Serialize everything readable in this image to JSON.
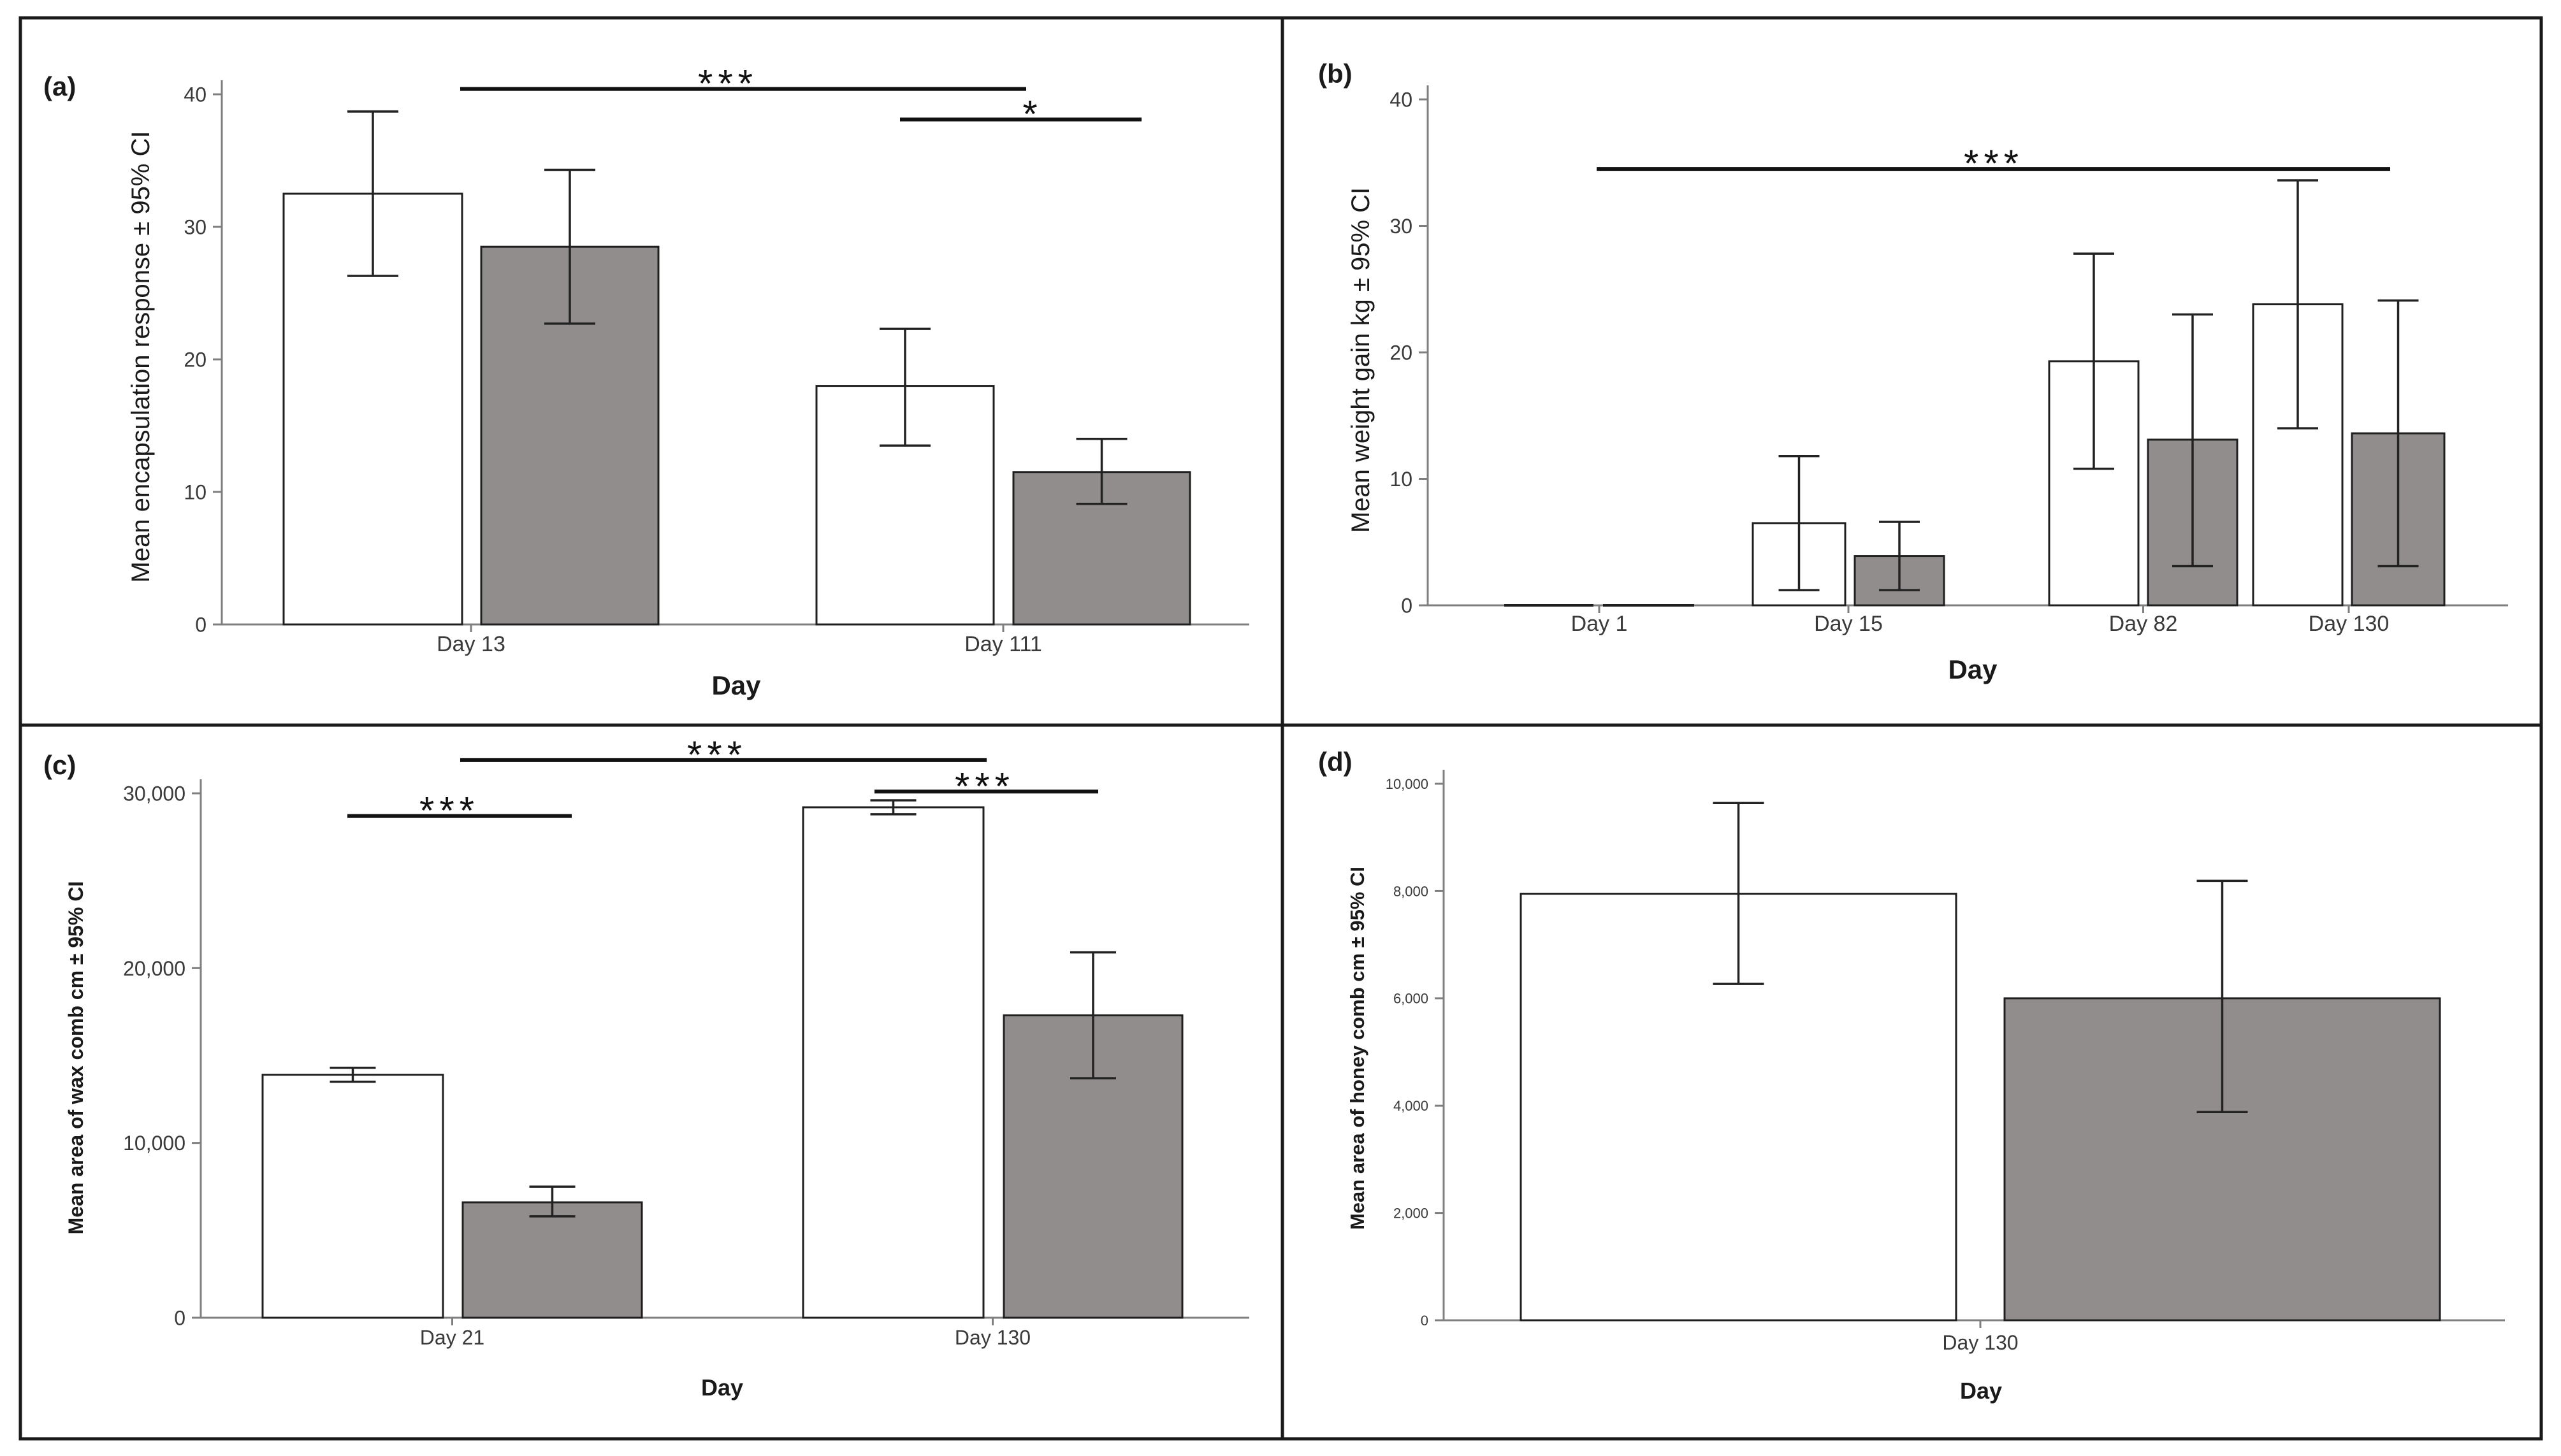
{
  "colors": {
    "open_fill": "#ffffff",
    "open_stroke": "#1f1f1f",
    "filled_fill": "#918d8c",
    "filled_stroke": "#1f1f1f",
    "axis": "#7f7f7f",
    "frame": "#1a1a1a",
    "text": "#1a1a1a",
    "tick_text": "#3a3a3a"
  },
  "chart_data": [
    {
      "panel": "(a)",
      "type": "bar",
      "title": "",
      "xlabel": "Day",
      "ylabel": "Mean encapsulation response ± 95% CI",
      "ylim": [
        0,
        40
      ],
      "yticks": [
        0,
        10,
        20,
        30,
        40
      ],
      "ytick_labels": [
        "0",
        "10",
        "20",
        "30",
        "40"
      ],
      "grid": false,
      "categories": [
        "Day 13",
        "Day 111"
      ],
      "series": [
        {
          "name": "open",
          "values": [
            32.5,
            18.0
          ],
          "ci_low": [
            26.3,
            13.5
          ],
          "ci_high": [
            38.7,
            22.3
          ]
        },
        {
          "name": "filled",
          "values": [
            28.5,
            11.5
          ],
          "ci_low": [
            22.7,
            9.1
          ],
          "ci_high": [
            34.3,
            14.0
          ]
        }
      ],
      "annotations": [
        {
          "label": "***",
          "from": [
            0,
            0
          ],
          "to": [
            1,
            0
          ],
          "y": 40.4
        },
        {
          "label": "*",
          "from": [
            1,
            0
          ],
          "to": [
            1,
            1
          ],
          "y": 38.1
        }
      ]
    },
    {
      "panel": "(b)",
      "type": "bar",
      "title": "",
      "xlabel": "Day",
      "ylabel": "Mean weight gain kg ± 95% CI",
      "ylim": [
        0,
        40
      ],
      "yticks": [
        0,
        10,
        20,
        30,
        40
      ],
      "ytick_labels": [
        "0",
        "10",
        "20",
        "30",
        "40"
      ],
      "grid": false,
      "categories": [
        "Day 1",
        "Day 15",
        "Day 82",
        "Day 130"
      ],
      "series": [
        {
          "name": "open",
          "values": [
            0,
            6.5,
            19.3,
            23.8
          ],
          "ci_low": [
            0,
            1.2,
            10.8,
            14.0
          ],
          "ci_high": [
            0,
            11.8,
            27.8,
            33.6
          ]
        },
        {
          "name": "filled",
          "values": [
            0,
            3.9,
            13.1,
            13.6
          ],
          "ci_low": [
            0,
            1.2,
            3.1,
            3.1
          ],
          "ci_high": [
            0,
            6.6,
            23.0,
            24.1
          ]
        }
      ],
      "annotations": [
        {
          "label": "***",
          "from": [
            0,
            0
          ],
          "to": [
            3,
            0
          ],
          "y": 34.5
        }
      ]
    },
    {
      "panel": "(c)",
      "type": "bar",
      "title": "",
      "xlabel": "Day",
      "ylabel": "Mean area of wax comb cm ± 95% CI",
      "ylim": [
        0,
        30000
      ],
      "yticks": [
        0,
        10000,
        20000,
        30000
      ],
      "ytick_labels": [
        "0",
        "10,000",
        "20,000",
        "30,000"
      ],
      "grid": false,
      "categories": [
        "Day 21",
        "Day 130"
      ],
      "series": [
        {
          "name": "open",
          "values": [
            13900,
            29200
          ],
          "ci_low": [
            13500,
            28800
          ],
          "ci_high": [
            14300,
            29600
          ]
        },
        {
          "name": "filled",
          "values": [
            6600,
            17300
          ],
          "ci_low": [
            5800,
            13700
          ],
          "ci_high": [
            7500,
            20900
          ]
        }
      ],
      "annotations": [
        {
          "label": "***",
          "from": [
            0,
            0
          ],
          "to": [
            0,
            1
          ],
          "y": 28700
        },
        {
          "label": "***",
          "from": [
            0,
            0
          ],
          "to": [
            1,
            0
          ],
          "y": 31900
        },
        {
          "label": "***",
          "from": [
            1,
            0
          ],
          "to": [
            1,
            1
          ],
          "y": 30100
        }
      ]
    },
    {
      "panel": "(d)",
      "type": "bar",
      "title": "",
      "xlabel": "Day",
      "ylabel": "Mean area of honey comb cm ± 95% CI",
      "ylim": [
        0,
        10000
      ],
      "yticks": [
        0,
        2000,
        4000,
        6000,
        8000,
        10000
      ],
      "ytick_labels": [
        "0",
        "2,000",
        "4,000",
        "6,000",
        "8,000",
        "10,000"
      ],
      "grid": false,
      "categories": [
        "Day 130"
      ],
      "series": [
        {
          "name": "open",
          "values": [
            7950
          ],
          "ci_low": [
            6270
          ],
          "ci_high": [
            9640
          ]
        },
        {
          "name": "filled",
          "values": [
            6000
          ],
          "ci_low": [
            3880
          ],
          "ci_high": [
            8190
          ]
        }
      ],
      "annotations": []
    }
  ]
}
